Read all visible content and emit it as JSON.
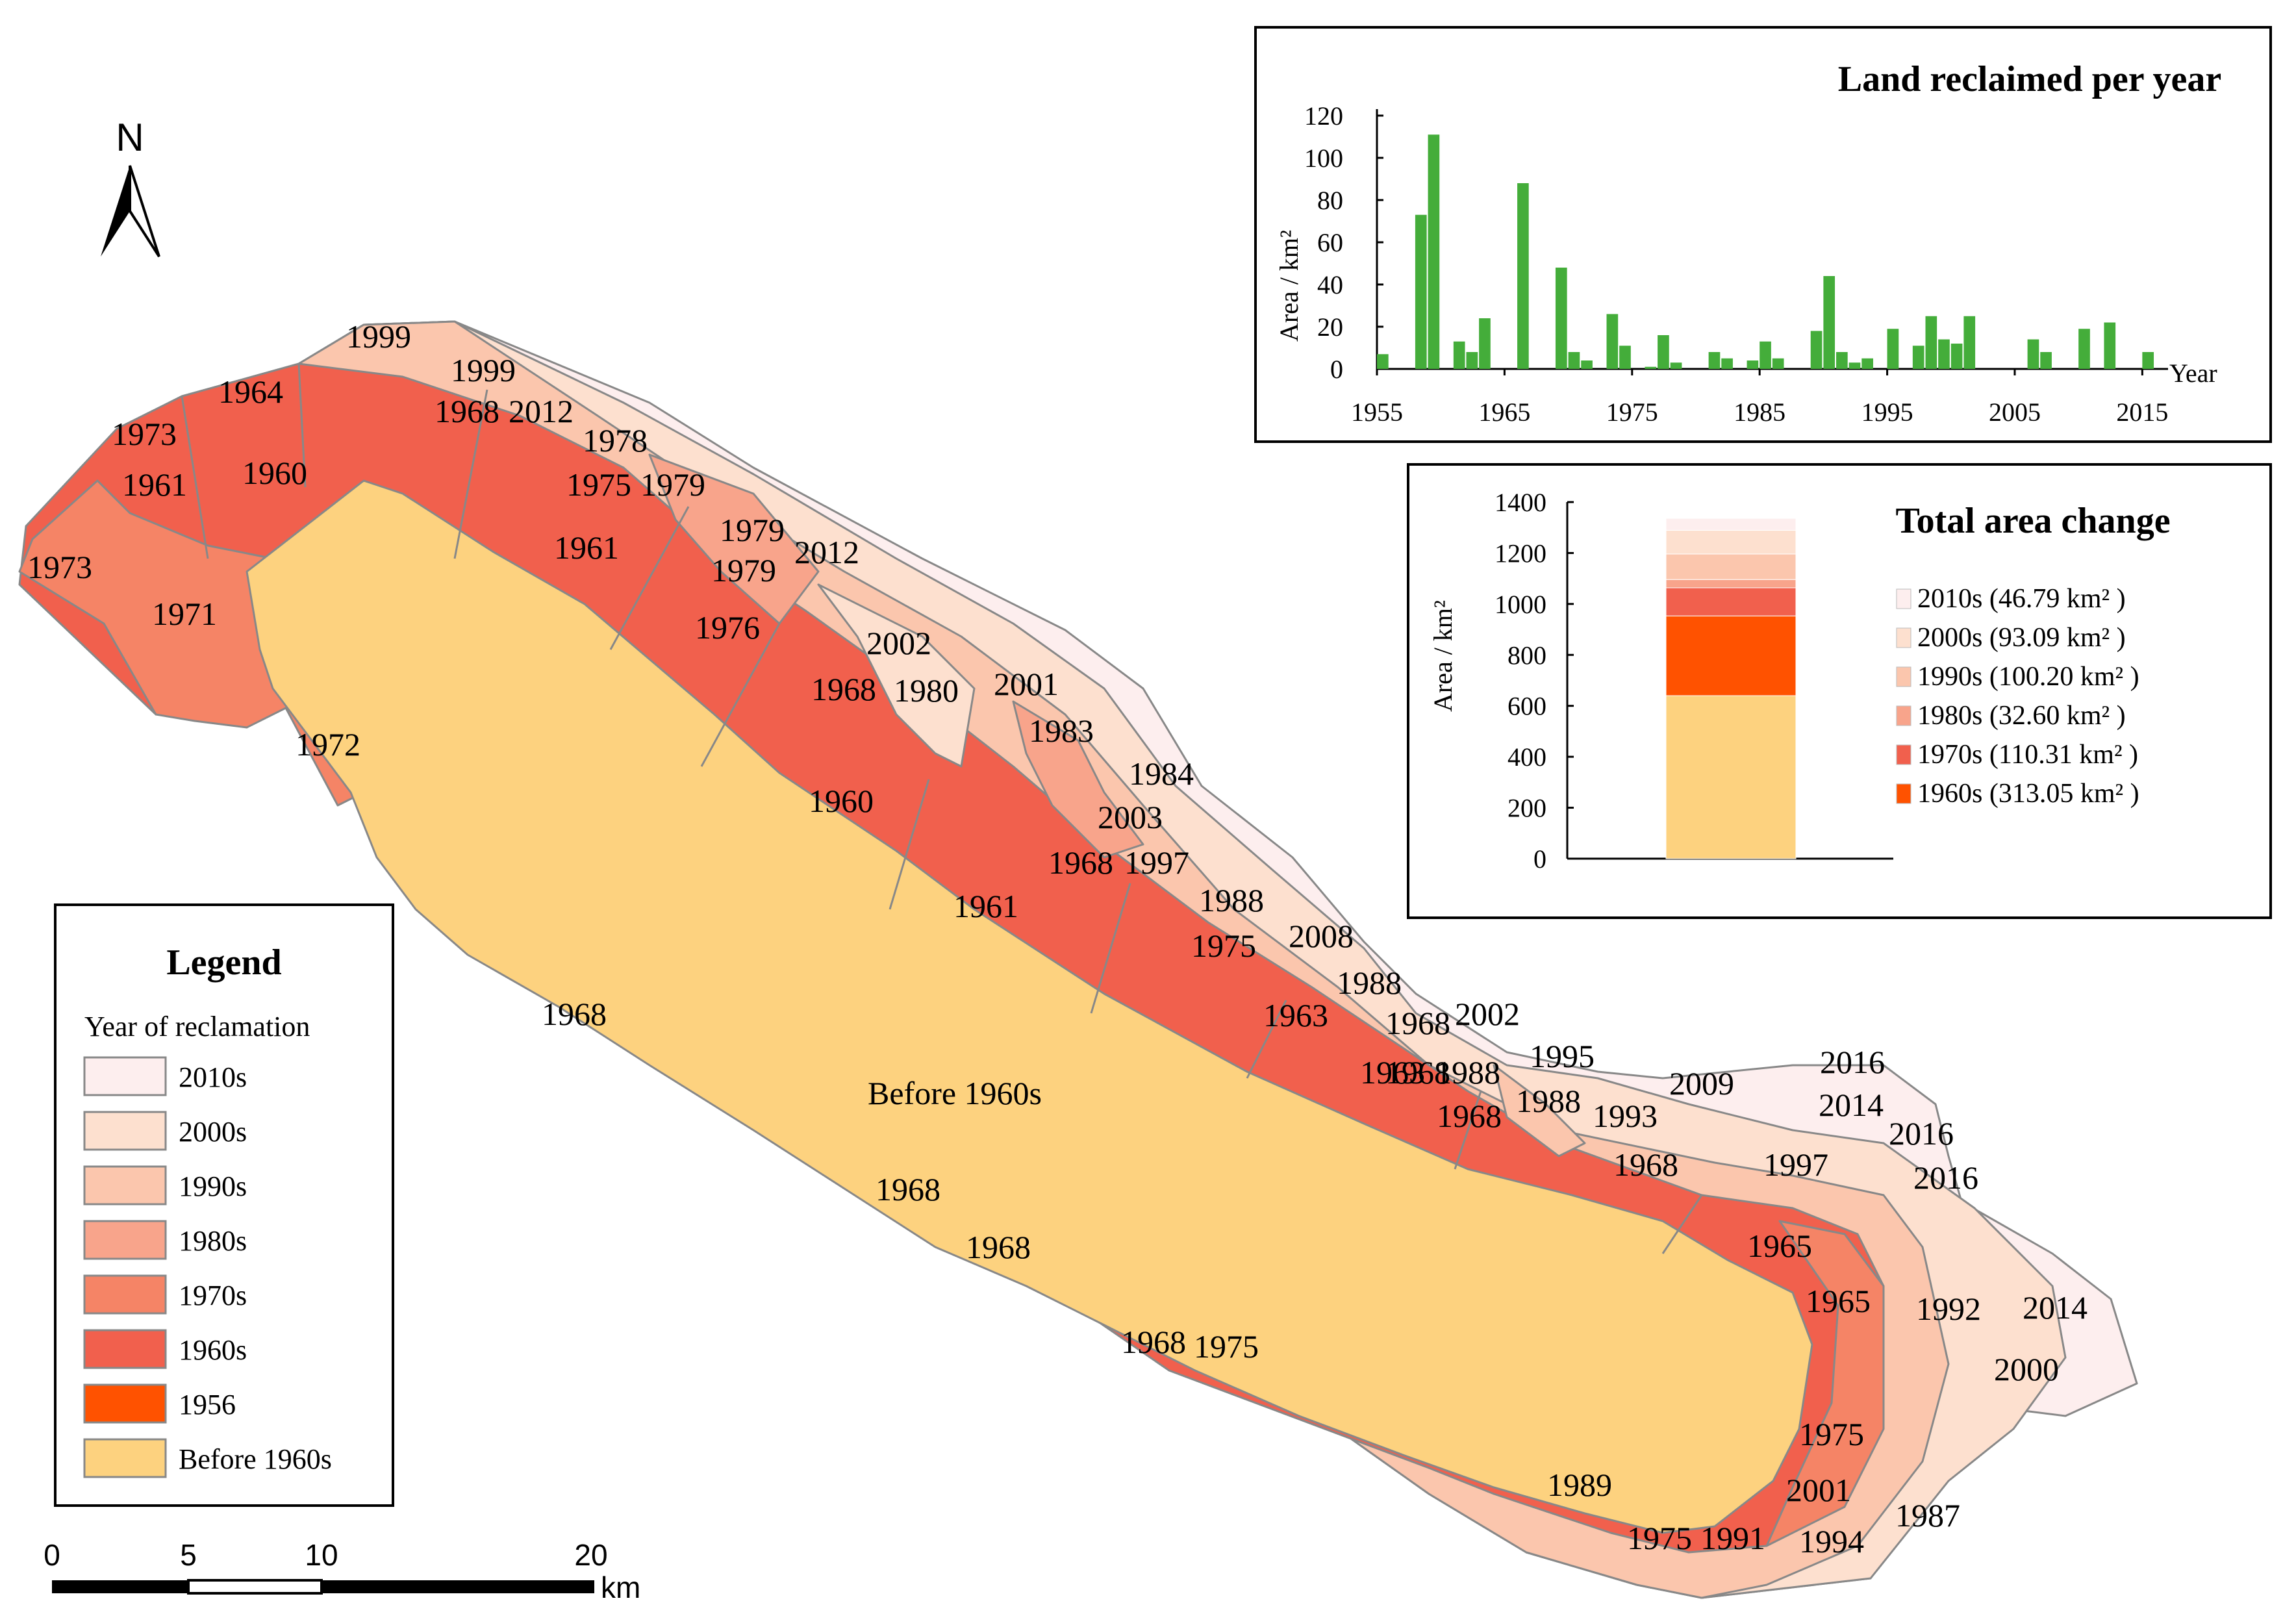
{
  "colors": {
    "2010s": "#fdeeee",
    "2000s": "#fde0cf",
    "1990s": "#fbc6ad",
    "1980s": "#f8a48b",
    "1970s": "#f58466",
    "1960s": "#f1604d",
    "1956": "#ff5200",
    "before": "#fdd27f",
    "bar_green": "#44ad3a",
    "border": "#888888"
  },
  "north_arrow": {
    "label": "N"
  },
  "scale_bar": {
    "ticks": [
      "0",
      "5",
      "10",
      "20"
    ],
    "unit": "km"
  },
  "legend": {
    "title": "Legend",
    "subtitle": "Year of reclamation",
    "items": [
      {
        "label": "2010s",
        "color_key": "2010s"
      },
      {
        "label": "2000s",
        "color_key": "2000s"
      },
      {
        "label": "1990s",
        "color_key": "1990s"
      },
      {
        "label": "1980s",
        "color_key": "1980s"
      },
      {
        "label": "1970s",
        "color_key": "1970s"
      },
      {
        "label": "1960s",
        "color_key": "1960s"
      },
      {
        "label": "1956",
        "color_key": "1956"
      },
      {
        "label": "Before 1960s",
        "color_key": "before"
      }
    ]
  },
  "map_labels": {
    "main": "Before 1960s",
    "items": [
      "1999",
      "1999",
      "1964",
      "1968",
      "2012",
      "1978",
      "1973",
      "1961",
      "1960",
      "1975",
      "1979",
      "1979",
      "1973",
      "1961",
      "1979",
      "2012",
      "1971",
      "1976",
      "2002",
      "1968",
      "1980",
      "2001",
      "1983",
      "1972",
      "1984",
      "1960",
      "2003",
      "1968",
      "1997",
      "1961",
      "1988",
      "1975",
      "2008",
      "1988",
      "1968",
      "1963",
      "2002",
      "1968",
      "1995",
      "1963",
      "1988",
      "2009",
      "2016",
      "1968",
      "1988",
      "1993",
      "2014",
      "2016",
      "1968",
      "1997",
      "2016",
      "1968",
      "1965",
      "1968",
      "1965",
      "1992",
      "2014",
      "1968",
      "1968",
      "2000",
      "1975",
      "1975",
      "1989",
      "2001",
      "1987",
      "1975",
      "1991",
      "1994"
    ]
  },
  "chart_data": [
    {
      "type": "bar",
      "title": "Land reclaimed per year",
      "xlabel": "Year",
      "ylabel": "Area / km²",
      "ylim": [
        0,
        120
      ],
      "xlim": [
        1955,
        2016
      ],
      "yticks": [
        "0",
        "20",
        "40",
        "60",
        "80",
        "100",
        "120"
      ],
      "xticks": [
        "1955",
        "1965",
        "1975",
        "1985",
        "1995",
        "2005",
        "2015"
      ],
      "x": [
        1955,
        1958,
        1959,
        1961,
        1962,
        1963,
        1966,
        1969,
        1970,
        1971,
        1973,
        1974,
        1976,
        1977,
        1978,
        1981,
        1982,
        1984,
        1985,
        1986,
        1989,
        1990,
        1991,
        1992,
        1993,
        1995,
        1997,
        1998,
        1999,
        2000,
        2001,
        2006,
        2007,
        2010,
        2012,
        2015
      ],
      "values": [
        7,
        73,
        111,
        13,
        8,
        24,
        88,
        48,
        8,
        4,
        26,
        11,
        1,
        16,
        3,
        8,
        5,
        4,
        13,
        5,
        18,
        44,
        8,
        3,
        5,
        19,
        11,
        25,
        14,
        12,
        25,
        14,
        8,
        19,
        22,
        8
      ]
    },
    {
      "type": "bar",
      "stacked": true,
      "title": "Total area change",
      "ylabel": "Area / km²",
      "ylim": [
        0,
        1400
      ],
      "yticks": [
        "0",
        "200",
        "400",
        "600",
        "800",
        "1000",
        "1200",
        "1400"
      ],
      "series": [
        {
          "name": "Before 1960s",
          "value": 640,
          "color_key": "before"
        },
        {
          "name": "1960s (313.05 km² )",
          "value": 313.05,
          "color_key": "1956"
        },
        {
          "name": "1970s (110.31 km² )",
          "value": 110.31,
          "color_key": "1960s"
        },
        {
          "name": "1980s (32.60 km² )",
          "value": 32.6,
          "color_key": "1980s"
        },
        {
          "name": "1990s (100.20 km² )",
          "value": 100.2,
          "color_key": "1990s"
        },
        {
          "name": "2000s (93.09 km² )",
          "value": 93.09,
          "color_key": "2000s"
        },
        {
          "name": "2010s (46.79 km² )",
          "value": 46.79,
          "color_key": "2010s"
        }
      ]
    }
  ]
}
